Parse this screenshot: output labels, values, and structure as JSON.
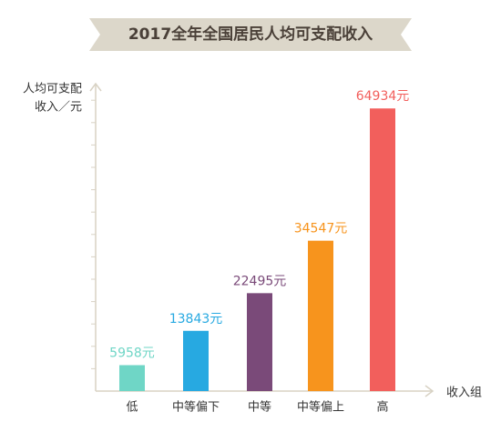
{
  "chart_data": {
    "type": "bar",
    "title": "2017全年全国居民人均可支配收入",
    "ylabel": [
      "人均可支配",
      "收入／元"
    ],
    "xlabel": "收入组",
    "categories": [
      "低",
      "中等偏下",
      "中等",
      "中等偏上",
      "高"
    ],
    "values": [
      5958,
      13843,
      22495,
      34547,
      64934
    ],
    "value_labels": [
      "5958元",
      "13843元",
      "22495元",
      "34547元",
      "64934元"
    ],
    "colors": [
      "#6fd6c6",
      "#27a9e1",
      "#7a4a79",
      "#f7941d",
      "#f25f5c"
    ],
    "ylim": [
      0,
      70000
    ]
  }
}
